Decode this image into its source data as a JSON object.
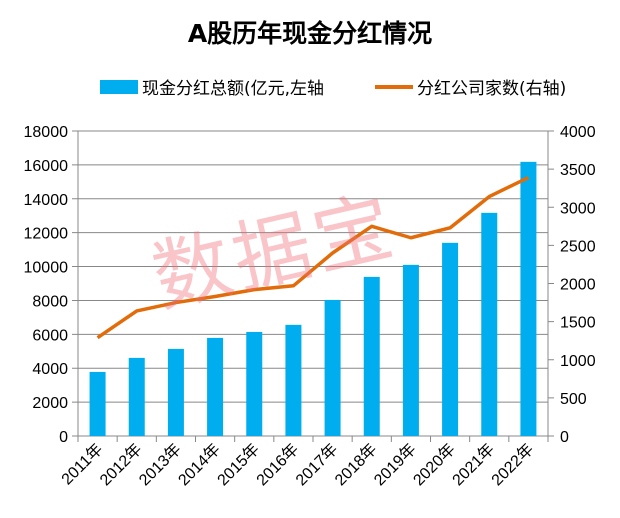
{
  "chart_data": {
    "type": "bar+line",
    "title": "A股历年现金分红情况",
    "categories": [
      "2011年",
      "2012年",
      "2013年",
      "2014年",
      "2015年",
      "2016年",
      "2017年",
      "2018年",
      "2019年",
      "2020年",
      "2021年",
      "2022年"
    ],
    "series": [
      {
        "name": "现金分红总额(亿元,左轴",
        "type": "bar",
        "axis": "left",
        "color": "#00aeef",
        "values": [
          3780,
          4610,
          5140,
          5790,
          6140,
          6560,
          8030,
          9390,
          10100,
          11400,
          13170,
          16180
        ]
      },
      {
        "name": "分红公司家数(右轴)",
        "type": "line",
        "axis": "right",
        "color": "#e36c0a",
        "values": [
          1290,
          1640,
          1750,
          1830,
          1920,
          1970,
          2400,
          2750,
          2600,
          2730,
          3140,
          3390
        ]
      }
    ],
    "left_axis": {
      "ylim": [
        0,
        18000
      ],
      "ticks": [
        "0",
        "2000",
        "4000",
        "6000",
        "8000",
        "10000",
        "12000",
        "14000",
        "16000",
        "18000"
      ]
    },
    "right_axis": {
      "ylim": [
        0,
        4000
      ],
      "ticks": [
        "0",
        "500",
        "1000",
        "1500",
        "2000",
        "2500",
        "3000",
        "3500",
        "4000"
      ]
    },
    "grid": true,
    "legend": "top"
  },
  "watermark": "数据宝"
}
